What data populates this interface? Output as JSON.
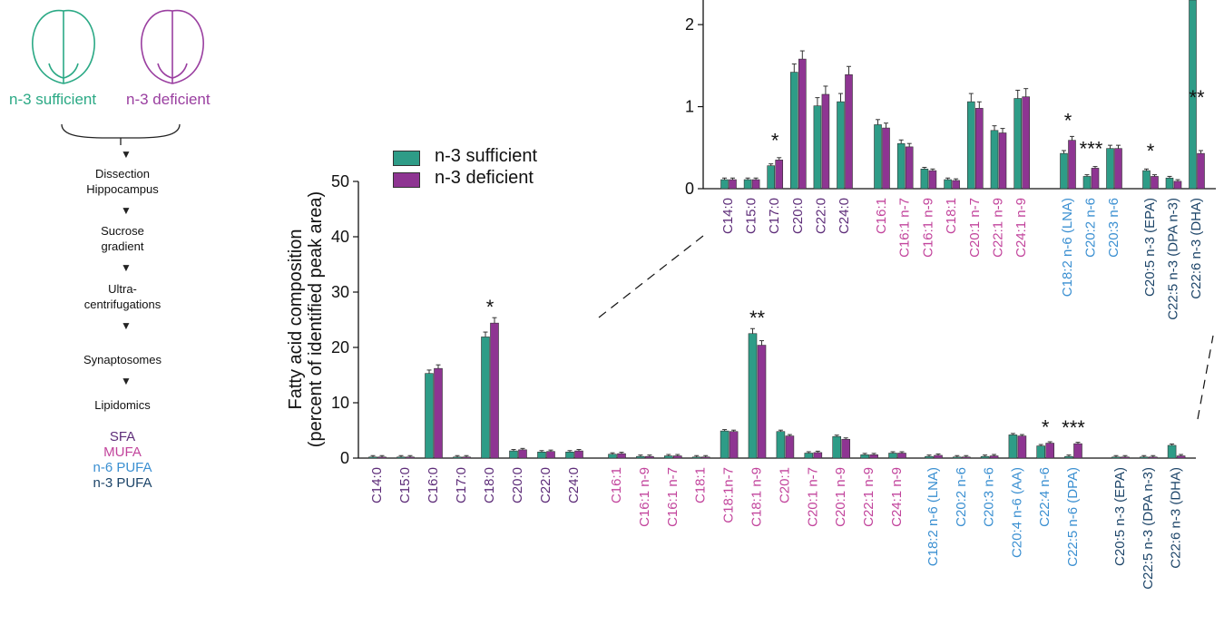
{
  "colors": {
    "sufficient": "#2e9c87",
    "deficient": "#8e3592",
    "SFA": "#5e2d79",
    "MUFA": "#c2449c",
    "n6": "#3a8fd1",
    "n3": "#1c4468",
    "brain_sufficient": "#2ba985",
    "brain_deficient": "#9a3fa0"
  },
  "flow": {
    "brain_left_label": "n-3 sufficient",
    "brain_right_label": "n-3 deficient",
    "steps": [
      "Dissection",
      "Hippocampus",
      "Sucrose",
      "gradient",
      "Ultra-",
      "centrifugations",
      "Synaptosomes",
      "Lipidomics"
    ],
    "classes": [
      "SFA",
      "MUFA",
      "n-6 PUFA",
      "n-3 PUFA"
    ]
  },
  "legend": {
    "sufficient": "n-3 sufficient",
    "deficient": "n-3 deficient"
  },
  "chart_data": [
    {
      "type": "bar",
      "ylabel": [
        "Fatty acid composition",
        "(percent of identified peak area)"
      ],
      "ylim": [
        0,
        50
      ],
      "yticks": [
        0,
        10,
        20,
        30,
        40,
        50
      ],
      "series": [
        {
          "name": "n-3 sufficient",
          "values": [
            0.2,
            0.2,
            15.3,
            0.2,
            21.9,
            1.3,
            1.1,
            1.1,
            0.7,
            0.3,
            0.4,
            0.2,
            4.9,
            22.5,
            4.8,
            0.9,
            3.9,
            0.6,
            0.9,
            0.3,
            0.2,
            0.3,
            4.2,
            2.2,
            0.3,
            0.2,
            0.2,
            2.3
          ]
        },
        {
          "name": "n-3 deficient",
          "values": [
            0.2,
            0.2,
            16.2,
            0.2,
            24.4,
            1.5,
            1.2,
            1.3,
            0.8,
            0.3,
            0.4,
            0.2,
            4.8,
            20.4,
            4.0,
            1.0,
            3.4,
            0.6,
            0.9,
            0.5,
            0.2,
            0.4,
            4.0,
            2.7,
            2.6,
            0.2,
            0.2,
            0.4
          ]
        }
      ],
      "categories": [
        {
          "label": "C14:0",
          "cls": "SFA"
        },
        {
          "label": "C15:0",
          "cls": "SFA"
        },
        {
          "label": "C16:0",
          "cls": "SFA"
        },
        {
          "label": "C17:0",
          "cls": "SFA"
        },
        {
          "label": "C18:0",
          "cls": "SFA",
          "star": "*"
        },
        {
          "label": "C20:0",
          "cls": "SFA"
        },
        {
          "label": "C22:0",
          "cls": "SFA"
        },
        {
          "label": "C24:0",
          "cls": "SFA"
        },
        {
          "label": "C16:1",
          "cls": "MUFA"
        },
        {
          "label": "C16:1 n-9",
          "cls": "MUFA"
        },
        {
          "label": "C16:1 n-7",
          "cls": "MUFA"
        },
        {
          "label": "C18:1",
          "cls": "MUFA"
        },
        {
          "label": "C18:1n-7",
          "cls": "MUFA"
        },
        {
          "label": "C18:1 n-9",
          "cls": "MUFA",
          "star": "**"
        },
        {
          "label": "C20:1",
          "cls": "MUFA"
        },
        {
          "label": "C20:1 n-7",
          "cls": "MUFA"
        },
        {
          "label": "C20:1 n-9",
          "cls": "MUFA"
        },
        {
          "label": "C22:1 n-9",
          "cls": "MUFA"
        },
        {
          "label": "C24:1 n-9",
          "cls": "MUFA"
        },
        {
          "label": "C18:2 n-6 (LNA)",
          "cls": "n6"
        },
        {
          "label": "C20:2 n-6",
          "cls": "n6"
        },
        {
          "label": "C20:3 n-6",
          "cls": "n6"
        },
        {
          "label": "C20:4 n-6 (AA)",
          "cls": "n6"
        },
        {
          "label": "C22:4 n-6",
          "cls": "n6",
          "star": "*"
        },
        {
          "label": "C22:5 n-6 (DPA)",
          "cls": "n6",
          "star": "***"
        },
        {
          "label": "C20:5 n-3 (EPA)",
          "cls": "n3"
        },
        {
          "label": "C22:5 n-3 (DPA n-3)",
          "cls": "n3"
        },
        {
          "label": "C22:6 n-3 (DHA)",
          "cls": "n3"
        }
      ]
    },
    {
      "type": "bar",
      "ylim": [
        0,
        2.3
      ],
      "yticks": [
        0,
        1,
        2
      ],
      "series": [
        {
          "name": "n-3 sufficient",
          "values": [
            0.11,
            0.11,
            0.28,
            1.42,
            1.01,
            1.06,
            0.78,
            0.55,
            0.24,
            0.11,
            1.06,
            0.71,
            1.1,
            0.43,
            0.15,
            0.49,
            0.22,
            0.13,
            2.3
          ]
        },
        {
          "name": "n-3 deficient",
          "values": [
            0.11,
            0.11,
            0.35,
            1.58,
            1.15,
            1.39,
            0.74,
            0.51,
            0.22,
            0.1,
            0.98,
            0.68,
            1.12,
            0.59,
            0.25,
            0.49,
            0.15,
            0.09,
            0.43
          ]
        }
      ],
      "categories": [
        {
          "label": "C14:0",
          "cls": "SFA"
        },
        {
          "label": "C15:0",
          "cls": "SFA"
        },
        {
          "label": "C17:0",
          "cls": "SFA",
          "star": "*"
        },
        {
          "label": "C20:0",
          "cls": "SFA"
        },
        {
          "label": "C22:0",
          "cls": "SFA"
        },
        {
          "label": "C24:0",
          "cls": "SFA"
        },
        {
          "label": "C16:1",
          "cls": "MUFA"
        },
        {
          "label": "C16:1 n-7",
          "cls": "MUFA"
        },
        {
          "label": "C16:1 n-9",
          "cls": "MUFA"
        },
        {
          "label": "C18:1",
          "cls": "MUFA"
        },
        {
          "label": "C20:1 n-7",
          "cls": "MUFA"
        },
        {
          "label": "C22:1 n-9",
          "cls": "MUFA"
        },
        {
          "label": "C24:1 n-9",
          "cls": "MUFA"
        },
        {
          "label": "C18:2 n-6 (LNA)",
          "cls": "n6",
          "star": "*"
        },
        {
          "label": "C20:2 n-6",
          "cls": "n6",
          "star": "***"
        },
        {
          "label": "C20:3 n-6",
          "cls": "n6"
        },
        {
          "label": "C20:5 n-3 (EPA)",
          "cls": "n3",
          "star": "*"
        },
        {
          "label": "C22:5 n-3 (DPA n-3)",
          "cls": "n3"
        },
        {
          "label": "C22:6 n-3 (DHA)",
          "cls": "n3",
          "star": "**"
        }
      ]
    }
  ]
}
